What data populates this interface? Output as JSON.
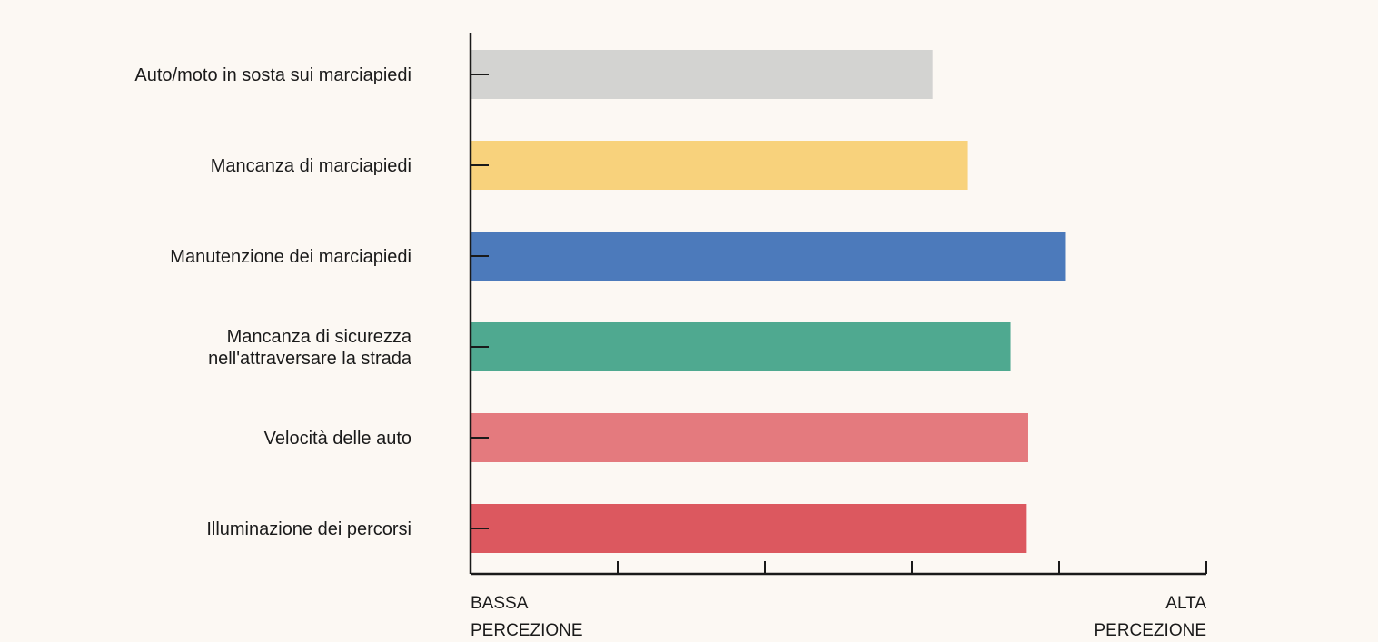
{
  "chart_data": {
    "type": "bar",
    "orientation": "horizontal",
    "categories": [
      [
        "Auto/moto in sosta sui marciapiedi"
      ],
      [
        "Mancanza di marciapiedi"
      ],
      [
        "Manutenzione dei marciapiedi"
      ],
      [
        "Mancanza di sicurezza",
        "nell'attraversare la strada"
      ],
      [
        "Velocità delle auto"
      ],
      [
        "Illuminazione dei percorsi"
      ]
    ],
    "values": [
      3.14,
      3.38,
      4.04,
      3.67,
      3.79,
      3.78
    ],
    "colors": [
      "#d3d3d1",
      "#f8d27c",
      "#4c7abb",
      "#4fa990",
      "#e47a7e",
      "#dc585f"
    ],
    "xlim": [
      0,
      5
    ],
    "x_ticks": [
      0,
      1,
      2,
      3,
      4,
      5
    ],
    "axis_end_labels": {
      "low": [
        "BASSA",
        "PERCEZIONE"
      ],
      "high": [
        "ALTA",
        "PERCEZIONE"
      ]
    },
    "grid": false,
    "legend": "none"
  }
}
